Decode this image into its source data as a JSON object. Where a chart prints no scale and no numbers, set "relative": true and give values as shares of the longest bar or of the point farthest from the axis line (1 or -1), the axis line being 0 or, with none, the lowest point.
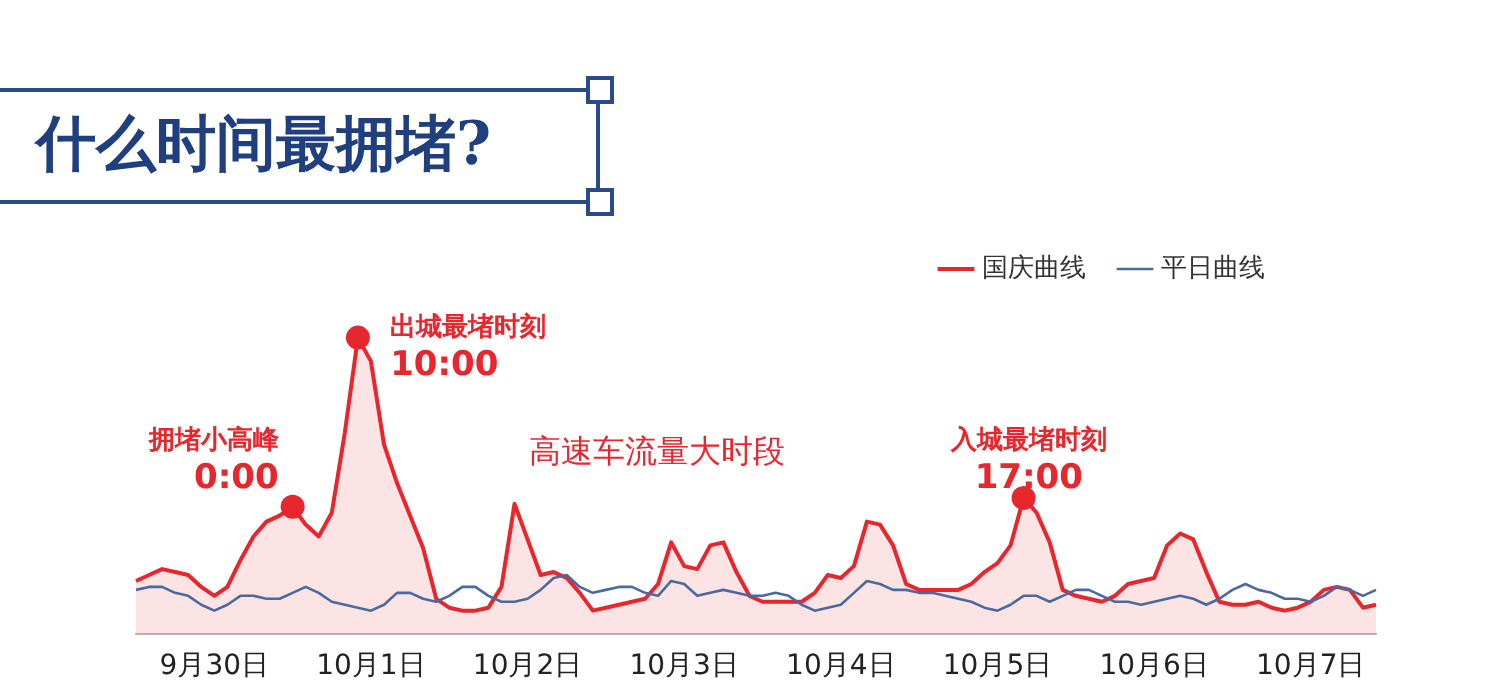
{
  "chart_data": {
    "type": "line",
    "title": "什么时间最拥堵?",
    "relative": true,
    "legend": "top right",
    "categories": [
      null,
      null,
      null,
      null,
      null,
      null,
      "9月30日",
      null,
      null,
      null,
      null,
      null,
      null,
      null,
      null,
      null,
      null,
      null,
      "10月1日",
      null,
      null,
      null,
      null,
      null,
      null,
      null,
      null,
      null,
      null,
      null,
      "10月2日",
      null,
      null,
      null,
      null,
      null,
      null,
      null,
      null,
      null,
      null,
      null,
      "10月3日",
      null,
      null,
      null,
      null,
      null,
      null,
      null,
      null,
      null,
      null,
      null,
      "10月4日",
      null,
      null,
      null,
      null,
      null,
      null,
      null,
      null,
      null,
      null,
      null,
      "10月5日",
      null,
      null,
      null,
      null,
      null,
      null,
      null,
      null,
      null,
      null,
      null,
      "10月6日",
      null,
      null,
      null,
      null,
      null,
      null,
      null,
      null,
      null,
      null,
      null,
      "10月7日",
      null,
      null,
      null,
      null,
      null
    ],
    "series": [
      {
        "name": "国庆曲线",
        "type": "area",
        "color": "#e8262d",
        "values": [
          0.18,
          0.2,
          0.22,
          0.21,
          0.2,
          0.16,
          0.13,
          0.16,
          0.25,
          0.33,
          0.38,
          0.4,
          0.43,
          0.37,
          0.33,
          0.41,
          0.68,
          1,
          0.92,
          0.64,
          0.51,
          0.4,
          0.29,
          0.12,
          0.09,
          0.08,
          0.08,
          0.09,
          0.16,
          0.44,
          0.32,
          0.2,
          0.21,
          0.19,
          0.14,
          0.08,
          0.09,
          0.1,
          0.11,
          0.12,
          0.17,
          0.31,
          0.23,
          0.22,
          0.3,
          0.31,
          0.21,
          0.13,
          0.11,
          0.11,
          0.11,
          0.11,
          0.14,
          0.2,
          0.19,
          0.23,
          0.38,
          0.37,
          0.3,
          0.17,
          0.15,
          0.15,
          0.15,
          0.15,
          0.17,
          0.21,
          0.24,
          0.3,
          0.46,
          0.41,
          0.31,
          0.15,
          0.13,
          0.12,
          0.11,
          0.13,
          0.17,
          0.18,
          0.19,
          0.3,
          0.34,
          0.32,
          0.21,
          0.11,
          0.1,
          0.1,
          0.11,
          0.09,
          0.08,
          0.09,
          0.11,
          0.15,
          0.16,
          0.15,
          0.09,
          0.1
        ]
      },
      {
        "name": "平日曲线",
        "type": "line",
        "color": "#4a6a9e",
        "values": [
          0.15,
          0.16,
          0.16,
          0.14,
          0.13,
          0.1,
          0.08,
          0.1,
          0.13,
          0.13,
          0.12,
          0.12,
          0.14,
          0.16,
          0.14,
          0.11,
          0.1,
          0.09,
          0.08,
          0.1,
          0.14,
          0.14,
          0.12,
          0.11,
          0.13,
          0.16,
          0.16,
          0.13,
          0.11,
          0.11,
          0.12,
          0.15,
          0.19,
          0.2,
          0.16,
          0.14,
          0.15,
          0.16,
          0.16,
          0.14,
          0.13,
          0.18,
          0.17,
          0.13,
          0.14,
          0.15,
          0.14,
          0.13,
          0.13,
          0.14,
          0.13,
          0.1,
          0.08,
          0.09,
          0.1,
          0.14,
          0.18,
          0.17,
          0.15,
          0.15,
          0.14,
          0.14,
          0.13,
          0.12,
          0.11,
          0.09,
          0.08,
          0.1,
          0.13,
          0.13,
          0.11,
          0.13,
          0.15,
          0.15,
          0.13,
          0.11,
          0.11,
          0.1,
          0.11,
          0.12,
          0.13,
          0.12,
          0.1,
          0.12,
          0.15,
          0.17,
          0.15,
          0.14,
          0.12,
          0.12,
          0.11,
          0.13,
          0.16,
          0.15,
          0.13,
          0.15
        ]
      },
      {
        "type": "scatter",
        "marker": "circle",
        "color": "#e8262d",
        "values": [
          null,
          null,
          null,
          null,
          null,
          null,
          null,
          null,
          null,
          null,
          null,
          null,
          0.43,
          null,
          null,
          null,
          null,
          1,
          null,
          null,
          null,
          null,
          null,
          null,
          null,
          null,
          null,
          null,
          null,
          null,
          null,
          null,
          null,
          null,
          null,
          null,
          null,
          null,
          null,
          null,
          null,
          null,
          null,
          null,
          null,
          null,
          null,
          null,
          null,
          null,
          null,
          null,
          null,
          null,
          null,
          null,
          null,
          null,
          null,
          null,
          null,
          null,
          null,
          null,
          null,
          null,
          null,
          null,
          0.46,
          null,
          null,
          null,
          null,
          null,
          null,
          null,
          null,
          null,
          null,
          null,
          null,
          null,
          null,
          null,
          null,
          null,
          null,
          null,
          null,
          null,
          null,
          null,
          null,
          null,
          null,
          null
        ]
      }
    ],
    "annotations": [
      "拥堵小高峰\n0:00",
      "出城最堵时刻\n10:00",
      "高速车流量大时段",
      "入城最堵时刻\n17:00"
    ]
  }
}
